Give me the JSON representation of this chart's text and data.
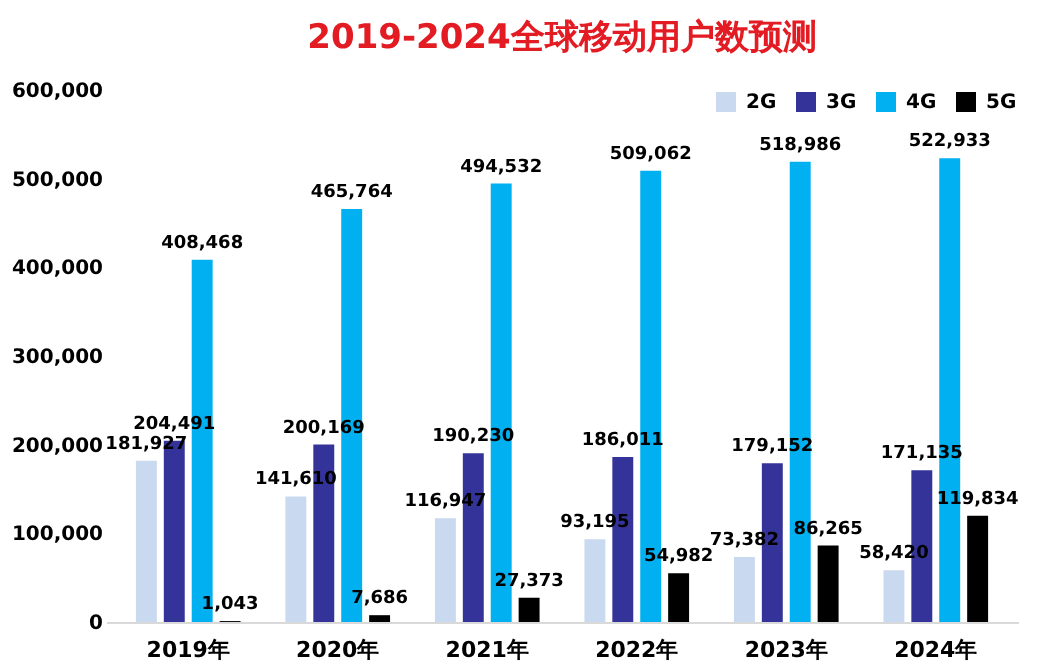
{
  "chart_data": {
    "type": "bar",
    "title": "2019-2024全球移动用户数预测",
    "categories": [
      "2019年",
      "2020年",
      "2021年",
      "2022年",
      "2023年",
      "2024年"
    ],
    "series": [
      {
        "name": "2G",
        "color": "#c9d9ef",
        "values": [
          181927,
          141610,
          116947,
          93195,
          73382,
          58420
        ],
        "value_labels": [
          "181,927",
          "141,610",
          "116,947",
          "93,195",
          "73,382",
          "58,420"
        ]
      },
      {
        "name": "3G",
        "color": "#333399",
        "values": [
          204491,
          200169,
          190230,
          186011,
          179152,
          171135
        ],
        "value_labels": [
          "204,491",
          "200,169",
          "190,230",
          "186,011",
          "179,152",
          "171,135"
        ]
      },
      {
        "name": "4G",
        "color": "#00b0f0",
        "values": [
          408468,
          465764,
          494532,
          509062,
          518986,
          522933
        ],
        "value_labels": [
          "408,468",
          "465,764",
          "494,532",
          "509,062",
          "518,986",
          "522,933"
        ]
      },
      {
        "name": "5G",
        "color": "#000000",
        "values": [
          1043,
          7686,
          27373,
          54982,
          86265,
          119834
        ],
        "value_labels": [
          "1,043",
          "7,686",
          "27,373",
          "54,982",
          "86,265",
          "119,834"
        ]
      }
    ],
    "ylim": [
      0,
      600000
    ],
    "yticks": [
      0,
      {
        "value": 100000,
        "label": "100,000"
      },
      {
        "value": 200000,
        "label": "200,000"
      },
      {
        "value": 300000,
        "label": "300,000"
      },
      {
        "value": 400000,
        "label": "400,000"
      },
      {
        "value": 500000,
        "label": "500,000"
      },
      {
        "value": 600000,
        "label": "600,000"
      }
    ],
    "grid": false,
    "legend": "top right"
  }
}
